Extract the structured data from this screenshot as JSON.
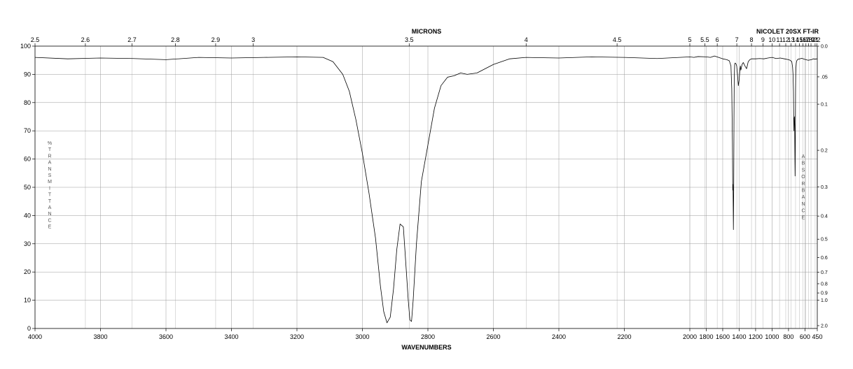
{
  "chart_data": {
    "type": "line",
    "title_top": "MICRONS",
    "instrument": "NICOLET 20SX FT-IR",
    "xlabel": "WAVENUMBERS",
    "ylabel_left": "%TRANSMITTANCE",
    "ylabel_right": "ABSORBANCE",
    "xlim": [
      4000,
      450
    ],
    "ylim": [
      0,
      100
    ],
    "x_ticks": [
      4000,
      3800,
      3600,
      3400,
      3200,
      3000,
      2800,
      2600,
      2400,
      2200,
      2000,
      1800,
      1600,
      1400,
      1200,
      1000,
      800,
      600,
      450
    ],
    "y_ticks": [
      0,
      10,
      20,
      30,
      40,
      50,
      60,
      70,
      80,
      90,
      100
    ],
    "micron_ticks": [
      {
        "label": "2.5",
        "um": 2.5
      },
      {
        "label": "2.6",
        "um": 2.6
      },
      {
        "label": "2.7",
        "um": 2.7
      },
      {
        "label": "2.8",
        "um": 2.8
      },
      {
        "label": "2.9",
        "um": 2.9
      },
      {
        "label": "3",
        "um": 3.0
      },
      {
        "label": "3.5",
        "um": 3.5
      },
      {
        "label": "4",
        "um": 4.0
      },
      {
        "label": "4.5",
        "um": 4.5
      },
      {
        "label": "5",
        "um": 5.0
      },
      {
        "label": "5.5",
        "um": 5.5
      },
      {
        "label": "6",
        "um": 6.0
      },
      {
        "label": "7",
        "um": 7.0
      },
      {
        "label": "8",
        "um": 8.0
      },
      {
        "label": "9",
        "um": 9.0
      },
      {
        "label": "10",
        "um": 10.0
      },
      {
        "label": "11",
        "um": 11.0
      },
      {
        "label": "12",
        "um": 12.0
      },
      {
        "label": "13",
        "um": 13.0
      },
      {
        "label": "14",
        "um": 14.0
      },
      {
        "label": "15",
        "um": 15.0
      },
      {
        "label": "16",
        "um": 16.0
      },
      {
        "label": "17",
        "um": 17.0
      },
      {
        "label": "18",
        "um": 18.0
      },
      {
        "label": "19",
        "um": 19.0
      },
      {
        "label": "21",
        "um": 21.0
      },
      {
        "label": "22",
        "um": 22.0
      }
    ],
    "absorbance_ticks": [
      "0.0",
      ".05",
      "0.1",
      "0.2",
      "0.3",
      "0.4",
      "0.5",
      "0.6",
      "0.7",
      "0.8",
      "0.9",
      "1.0",
      "2.0"
    ],
    "series": [
      {
        "color": "#000000",
        "x": [
          4000,
          3900,
          3800,
          3700,
          3600,
          3500,
          3400,
          3300,
          3200,
          3120,
          3090,
          3060,
          3040,
          3020,
          3000,
          2980,
          2960,
          2945,
          2935,
          2925,
          2915,
          2905,
          2895,
          2885,
          2875,
          2868,
          2860,
          2855,
          2850,
          2845,
          2835,
          2820,
          2800,
          2780,
          2760,
          2740,
          2720,
          2700,
          2680,
          2650,
          2600,
          2550,
          2500,
          2400,
          2300,
          2200,
          2100,
          2000,
          1950,
          1900,
          1800,
          1750,
          1700,
          1650,
          1600,
          1550,
          1520,
          1500,
          1490,
          1482,
          1478,
          1475,
          1470,
          1466,
          1463,
          1460,
          1455,
          1450,
          1440,
          1430,
          1420,
          1410,
          1400,
          1390,
          1385,
          1380,
          1377,
          1372,
          1365,
          1350,
          1330,
          1310,
          1300,
          1290,
          1270,
          1250,
          1200,
          1150,
          1100,
          1050,
          1000,
          950,
          900,
          850,
          800,
          780,
          760,
          750,
          745,
          740,
          737,
          734,
          731,
          728,
          725,
          722,
          720,
          718,
          716,
          714,
          712,
          710,
          705,
          700,
          690,
          680,
          660,
          640,
          600,
          560,
          520,
          500,
          480,
          450
        ],
        "y": [
          96,
          95.5,
          95.8,
          95.6,
          95.2,
          96,
          95.8,
          96,
          96.2,
          96,
          94.5,
          90,
          84,
          74,
          62,
          48,
          32,
          15,
          6,
          2,
          4,
          14,
          28,
          37,
          36,
          24,
          10,
          3,
          2.5,
          10,
          30,
          52,
          65,
          78,
          86,
          89,
          89.5,
          90.5,
          90,
          90.5,
          93.5,
          95.5,
          96,
          95.8,
          96.2,
          96,
          95.6,
          96.2,
          96,
          96.3,
          96.2,
          96,
          96.5,
          96,
          95.5,
          95.2,
          94.8,
          93,
          85,
          66,
          49,
          51,
          35,
          50,
          74,
          88,
          93.5,
          94,
          93.8,
          93,
          90,
          86,
          88,
          92,
          93,
          91.5,
          91.8,
          92.5,
          93.5,
          94.2,
          93,
          92,
          93.2,
          94.5,
          95.2,
          95.5,
          95.5,
          95.6,
          95.5,
          95.8,
          96,
          95.6,
          95.8,
          95.5,
          95.2,
          95,
          94.5,
          92.5,
          90,
          84,
          75,
          70,
          74,
          75,
          72,
          60,
          54,
          62,
          75,
          85,
          90,
          92,
          94,
          94.8,
          95.2,
          95.4,
          95.5,
          95.7,
          95.3,
          95,
          95.2,
          95.5,
          95.4,
          95.5
        ]
      }
    ],
    "grid": true
  }
}
